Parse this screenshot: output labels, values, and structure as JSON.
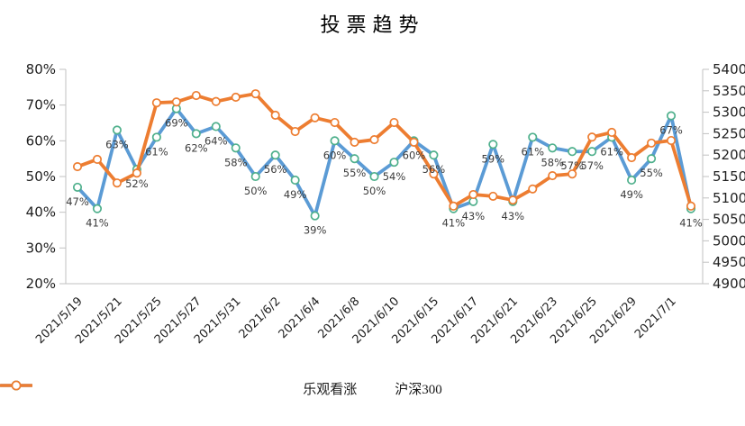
{
  "chart_data": {
    "type": "line",
    "title": "投票趋势",
    "x_tick_labels": [
      "2021/5/19",
      "2021/5/21",
      "2021/5/25",
      "2021/5/27",
      "2021/5/31",
      "2021/6/2",
      "2021/6/4",
      "2021/6/8",
      "2021/6/10",
      "2021/6/15",
      "2021/6/17",
      "2021/6/21",
      "2021/6/23",
      "2021/6/25",
      "2021/6/29",
      "2021/7/1"
    ],
    "points_per_tick": 2,
    "left_axis": {
      "min": 20,
      "max": 80,
      "step": 10,
      "format": "percent"
    },
    "right_axis": {
      "min": 4900,
      "max": 5400,
      "step": 50,
      "format": "number"
    },
    "grid": false,
    "legend_position": "bottom",
    "series": [
      {
        "name": "乐观看涨",
        "axis": "left",
        "color": "#5B9BD5",
        "marker_border": "#4FB08C",
        "marker_fill": "#FFFFFF",
        "data_labels": true,
        "values": [
          47,
          41,
          63,
          52,
          61,
          69,
          62,
          64,
          58,
          50,
          56,
          49,
          39,
          60,
          55,
          50,
          54,
          60,
          56,
          41,
          43,
          59,
          43,
          61,
          58,
          57,
          57,
          61,
          49,
          55,
          67,
          41
        ]
      },
      {
        "name": "沪深300",
        "axis": "right",
        "color": "#ED7D31",
        "marker_border": "#ED7D31",
        "marker_fill": "#FFFFFF",
        "data_labels": false,
        "values": [
          5173,
          5190,
          5135,
          5158,
          5322,
          5324,
          5339,
          5325,
          5335,
          5343,
          5293,
          5255,
          5287,
          5276,
          5230,
          5236,
          5276,
          5230,
          5156,
          5081,
          5108,
          5104,
          5095,
          5121,
          5152,
          5156,
          5242,
          5253,
          5194,
          5228,
          5234,
          5081
        ]
      }
    ],
    "axis_line_color": "#C2C2C2",
    "tick_label_color": "#1f1f1f",
    "data_label_color": "#3c3c3c"
  }
}
